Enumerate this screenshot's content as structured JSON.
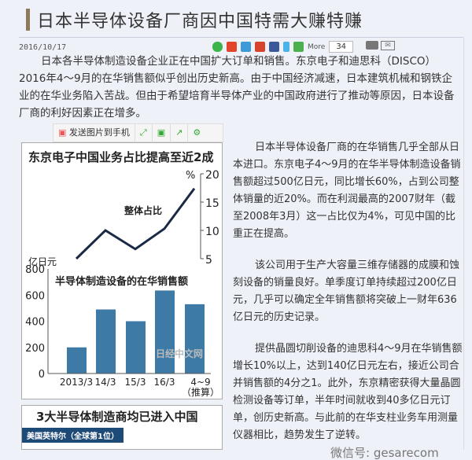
{
  "article": {
    "title": "日本半导体设备厂商因中国特需大赚特赚",
    "date": "2016/10/17",
    "share": {
      "more_label": "More",
      "count": "34",
      "icons": [
        "wechat-icon",
        "weibo-icon",
        "qzone-icon",
        "google-plus-icon",
        "facebook-icon",
        "twitter-icon",
        "plus-icon"
      ]
    },
    "paragraph1": "日本各半导体制造设备企业正在中国扩大订单和销售。东京电子和迪思科（DISCO）2016年4～9月的在华销售额似乎创出历史新高。由于中国经济减速，日本建筑机械和钢铁企业的在华业务陷入苦战。但由于希望培育半导体产业的中国政府进行了推动等原因，日本设备厂商的利好因素正在增多。",
    "paragraphs_right": [
      "日本半导体设备厂商的在华销售几乎全部从日本进口。东京电子4～9月的在华半导体制造设备销售额超过500亿日元，同比增长60%，占到公司整体销量的近20%。而在利润最高的2007财年（截至2008年3月）这一占比仅为4%，可见中国的比重正在提高。",
      "该公司用于生产大容量三维存储器的成膜和蚀刻设备的销量良好。单季度订单持续超过200亿日元，几乎可以确定全年销售额将突破上一财年636亿日元的历史记录。",
      "提供晶圆切削设备的迪思科4～9月在华销售额增长10%以上，达到140亿日元左右，接近公司合并销售额的4分之1。此外，东京精密获得大量晶圆检测设备等订单，半年时间就收到40多亿日元订单，创历史新高。与此前的在华支柱业务车用测量仪器相比，趋势发生了逆转。"
    ],
    "watermark": "微信号: gesarecom"
  },
  "image_toolbar": {
    "send_label": "发送图片到手机"
  },
  "chart_data": {
    "type": "bar+line",
    "title": "东京电子中国业务占比提高至近2成",
    "categories": [
      "2013/3",
      "14/3",
      "15/3",
      "16/3",
      "4~9（推算）"
    ],
    "bar": {
      "name": "半导体制造设备的在华销售额",
      "unit": "亿日元",
      "values": [
        200,
        490,
        400,
        635,
        530
      ],
      "ylim": [
        0,
        800
      ],
      "ticks": [
        "0",
        "200",
        "400",
        "600",
        "800"
      ],
      "color": "#3d7aa6"
    },
    "line": {
      "name": "整体占比",
      "unit": "%",
      "values": [
        5,
        10,
        6.7,
        10.3,
        17.4
      ],
      "ylim": [
        5,
        20
      ],
      "ticks": [
        "5",
        "10",
        "15",
        "20"
      ],
      "color": "#1a2a44"
    },
    "source_watermark": "日经中文网"
  },
  "chart2": {
    "title": "3大半导体制造商均已进入中国",
    "tag": "美国英特尔（全球第1位）"
  }
}
